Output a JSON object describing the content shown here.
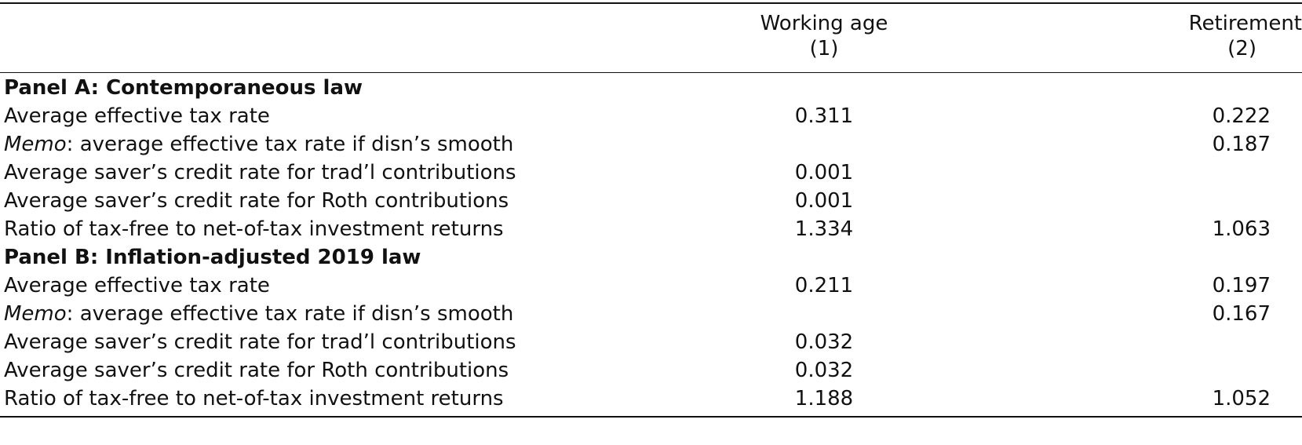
{
  "header": {
    "col1_title": "Working age",
    "col1_num": "(1)",
    "col2_title": "Retirement",
    "col2_num": "(2)"
  },
  "panels": [
    {
      "title": "Panel A: Contemporaneous law",
      "rows": [
        {
          "label": "Average effective tax rate",
          "working_age": "0.311",
          "retirement": "0.222"
        },
        {
          "label_prefix": "Memo",
          "label": ": average effective tax rate if disn’s smooth",
          "working_age": "",
          "retirement": "0.187"
        },
        {
          "label": "Average saver’s credit rate for trad’l contributions",
          "working_age": "0.001",
          "retirement": ""
        },
        {
          "label": "Average saver’s credit rate for Roth contributions",
          "working_age": "0.001",
          "retirement": ""
        },
        {
          "label": "Ratio of tax-free to net-of-tax investment returns",
          "working_age": "1.334",
          "retirement": "1.063"
        }
      ]
    },
    {
      "title": "Panel B: Inflation-adjusted 2019 law",
      "rows": [
        {
          "label": "Average effective tax rate",
          "working_age": "0.211",
          "retirement": "0.197"
        },
        {
          "label_prefix": "Memo",
          "label": ": average effective tax rate if disn’s smooth",
          "working_age": "",
          "retirement": "0.167"
        },
        {
          "label": "Average saver’s credit rate for trad’l contributions",
          "working_age": "0.032",
          "retirement": ""
        },
        {
          "label": "Average saver’s credit rate for Roth contributions",
          "working_age": "0.032",
          "retirement": ""
        },
        {
          "label": "Ratio of tax-free to net-of-tax investment returns",
          "working_age": "1.188",
          "retirement": "1.052"
        }
      ]
    }
  ]
}
